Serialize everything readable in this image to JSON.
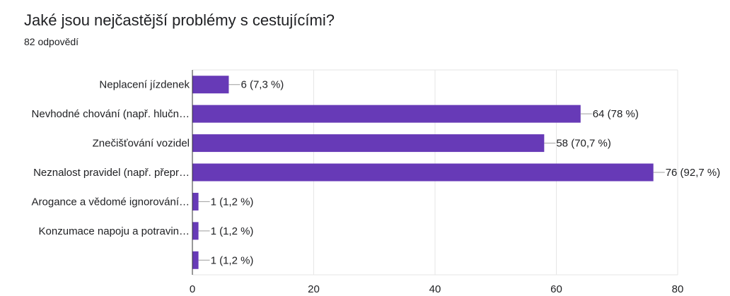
{
  "question": {
    "title": "Jaké jsou nejčastější problémy s cestujícími?",
    "response_count": "82 odpovědí"
  },
  "colors": {
    "bar": "#673ab7",
    "grid": "#e6e6e6",
    "axis": "#9e9e9e",
    "text": "#202124"
  },
  "chart_data": {
    "type": "bar",
    "orientation": "horizontal",
    "title": "",
    "xlabel": "",
    "ylabel": "",
    "xlim": [
      0,
      80
    ],
    "xticks": [
      0,
      20,
      40,
      60,
      80
    ],
    "grid": true,
    "categories": [
      "Neplacení jízdenek",
      "Nevhodné chování (např. hlučn…",
      "Znečišťování vozidel",
      "Neznalost pravidel (např. přepr…",
      "Arogance a vědomé ignorování…",
      "Konzumace napoju a potravin…",
      ""
    ],
    "values": [
      6,
      64,
      58,
      76,
      1,
      1,
      1
    ],
    "data_labels": [
      "6 (7,3 %)",
      "64 (78 %)",
      "58 (70,7 %)",
      "76 (92,7 %)",
      "1 (1,2 %)",
      "1 (1,2 %)",
      "1 (1,2 %)"
    ]
  }
}
